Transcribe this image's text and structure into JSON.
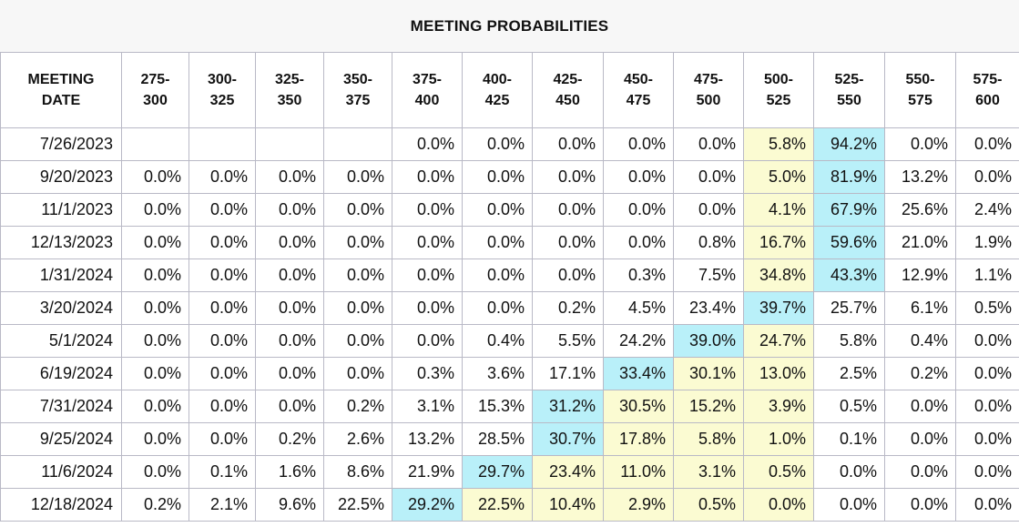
{
  "title": "MEETING PROBABILITIES",
  "colors": {
    "yellow": "#fbfbd2",
    "cyan": "#b9f0f9"
  },
  "columns": [
    [
      "MEETING",
      "DATE"
    ],
    [
      "275-",
      "300"
    ],
    [
      "300-",
      "325"
    ],
    [
      "325-",
      "350"
    ],
    [
      "350-",
      "375"
    ],
    [
      "375-",
      "400"
    ],
    [
      "400-",
      "425"
    ],
    [
      "425-",
      "450"
    ],
    [
      "450-",
      "475"
    ],
    [
      "475-",
      "500"
    ],
    [
      "500-",
      "525"
    ],
    [
      "525-",
      "550"
    ],
    [
      "550-",
      "575"
    ],
    [
      "575-",
      "600"
    ]
  ],
  "rows": [
    {
      "date": "7/26/2023",
      "values": [
        "",
        "",
        "",
        "",
        "0.0%",
        "0.0%",
        "0.0%",
        "0.0%",
        "0.0%",
        "5.8%",
        "94.2%",
        "0.0%",
        "0.0%"
      ],
      "hl": [
        "",
        "",
        "",
        "",
        "",
        "",
        "",
        "",
        "",
        "y",
        "c",
        "",
        ""
      ]
    },
    {
      "date": "9/20/2023",
      "values": [
        "0.0%",
        "0.0%",
        "0.0%",
        "0.0%",
        "0.0%",
        "0.0%",
        "0.0%",
        "0.0%",
        "0.0%",
        "5.0%",
        "81.9%",
        "13.2%",
        "0.0%"
      ],
      "hl": [
        "",
        "",
        "",
        "",
        "",
        "",
        "",
        "",
        "",
        "y",
        "c",
        "",
        ""
      ]
    },
    {
      "date": "11/1/2023",
      "values": [
        "0.0%",
        "0.0%",
        "0.0%",
        "0.0%",
        "0.0%",
        "0.0%",
        "0.0%",
        "0.0%",
        "0.0%",
        "4.1%",
        "67.9%",
        "25.6%",
        "2.4%"
      ],
      "hl": [
        "",
        "",
        "",
        "",
        "",
        "",
        "",
        "",
        "",
        "y",
        "c",
        "",
        ""
      ]
    },
    {
      "date": "12/13/2023",
      "values": [
        "0.0%",
        "0.0%",
        "0.0%",
        "0.0%",
        "0.0%",
        "0.0%",
        "0.0%",
        "0.0%",
        "0.8%",
        "16.7%",
        "59.6%",
        "21.0%",
        "1.9%"
      ],
      "hl": [
        "",
        "",
        "",
        "",
        "",
        "",
        "",
        "",
        "",
        "y",
        "c",
        "",
        ""
      ]
    },
    {
      "date": "1/31/2024",
      "values": [
        "0.0%",
        "0.0%",
        "0.0%",
        "0.0%",
        "0.0%",
        "0.0%",
        "0.0%",
        "0.3%",
        "7.5%",
        "34.8%",
        "43.3%",
        "12.9%",
        "1.1%"
      ],
      "hl": [
        "",
        "",
        "",
        "",
        "",
        "",
        "",
        "",
        "",
        "y",
        "c",
        "",
        ""
      ]
    },
    {
      "date": "3/20/2024",
      "values": [
        "0.0%",
        "0.0%",
        "0.0%",
        "0.0%",
        "0.0%",
        "0.0%",
        "0.2%",
        "4.5%",
        "23.4%",
        "39.7%",
        "25.7%",
        "6.1%",
        "0.5%"
      ],
      "hl": [
        "",
        "",
        "",
        "",
        "",
        "",
        "",
        "",
        "",
        "c",
        "",
        "",
        ""
      ]
    },
    {
      "date": "5/1/2024",
      "values": [
        "0.0%",
        "0.0%",
        "0.0%",
        "0.0%",
        "0.0%",
        "0.4%",
        "5.5%",
        "24.2%",
        "39.0%",
        "24.7%",
        "5.8%",
        "0.4%",
        "0.0%"
      ],
      "hl": [
        "",
        "",
        "",
        "",
        "",
        "",
        "",
        "",
        "c",
        "y",
        "",
        "",
        ""
      ]
    },
    {
      "date": "6/19/2024",
      "values": [
        "0.0%",
        "0.0%",
        "0.0%",
        "0.0%",
        "0.3%",
        "3.6%",
        "17.1%",
        "33.4%",
        "30.1%",
        "13.0%",
        "2.5%",
        "0.2%",
        "0.0%"
      ],
      "hl": [
        "",
        "",
        "",
        "",
        "",
        "",
        "",
        "c",
        "y",
        "y",
        "",
        "",
        ""
      ]
    },
    {
      "date": "7/31/2024",
      "values": [
        "0.0%",
        "0.0%",
        "0.0%",
        "0.2%",
        "3.1%",
        "15.3%",
        "31.2%",
        "30.5%",
        "15.2%",
        "3.9%",
        "0.5%",
        "0.0%",
        "0.0%"
      ],
      "hl": [
        "",
        "",
        "",
        "",
        "",
        "",
        "c",
        "y",
        "y",
        "y",
        "",
        "",
        ""
      ]
    },
    {
      "date": "9/25/2024",
      "values": [
        "0.0%",
        "0.0%",
        "0.2%",
        "2.6%",
        "13.2%",
        "28.5%",
        "30.7%",
        "17.8%",
        "5.8%",
        "1.0%",
        "0.1%",
        "0.0%",
        "0.0%"
      ],
      "hl": [
        "",
        "",
        "",
        "",
        "",
        "",
        "c",
        "y",
        "y",
        "y",
        "",
        "",
        ""
      ]
    },
    {
      "date": "11/6/2024",
      "values": [
        "0.0%",
        "0.1%",
        "1.6%",
        "8.6%",
        "21.9%",
        "29.7%",
        "23.4%",
        "11.0%",
        "3.1%",
        "0.5%",
        "0.0%",
        "0.0%",
        "0.0%"
      ],
      "hl": [
        "",
        "",
        "",
        "",
        "",
        "c",
        "y",
        "y",
        "y",
        "y",
        "",
        "",
        ""
      ]
    },
    {
      "date": "12/18/2024",
      "values": [
        "0.2%",
        "2.1%",
        "9.6%",
        "22.5%",
        "29.2%",
        "22.5%",
        "10.4%",
        "2.9%",
        "0.5%",
        "0.0%",
        "0.0%",
        "0.0%",
        "0.0%"
      ],
      "hl": [
        "",
        "",
        "",
        "",
        "c",
        "y",
        "y",
        "y",
        "y",
        "y",
        "",
        "",
        ""
      ]
    }
  ]
}
